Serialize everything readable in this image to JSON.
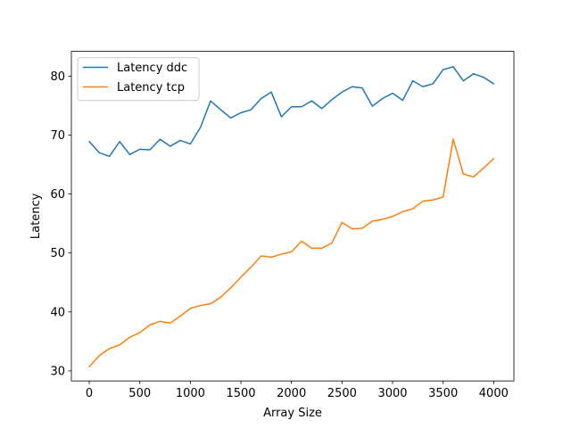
{
  "chart_data": {
    "type": "line",
    "title": "",
    "xlabel": "Array Size",
    "ylabel": "Latency",
    "xlim": [
      -177,
      4200
    ],
    "ylim": [
      28.3,
      84.2
    ],
    "xticks": [
      0,
      500,
      1000,
      1500,
      2000,
      2500,
      3000,
      3500,
      4000
    ],
    "yticks": [
      30,
      40,
      50,
      60,
      70,
      80
    ],
    "grid": false,
    "legend_position": "top-left",
    "x": [
      0,
      100,
      200,
      300,
      400,
      500,
      600,
      700,
      800,
      900,
      1000,
      1100,
      1200,
      1300,
      1400,
      1500,
      1600,
      1700,
      1800,
      1900,
      2000,
      2100,
      2200,
      2300,
      2400,
      2500,
      2600,
      2700,
      2800,
      2900,
      3000,
      3100,
      3200,
      3300,
      3400,
      3500,
      3600,
      3700,
      3800,
      3900,
      4000
    ],
    "series": [
      {
        "name": "Latency ddc",
        "color": "#1f77b4",
        "values": [
          68.9,
          67.0,
          66.4,
          68.9,
          66.7,
          67.6,
          67.5,
          69.3,
          68.1,
          69.1,
          68.5,
          71.3,
          75.8,
          74.3,
          72.9,
          73.8,
          74.3,
          76.2,
          77.3,
          73.1,
          74.8,
          74.8,
          75.8,
          74.5,
          76.0,
          77.3,
          78.2,
          78.0,
          74.9,
          76.2,
          77.1,
          75.9,
          79.2,
          78.2,
          78.7,
          81.1,
          81.6,
          79.2,
          80.4,
          79.8,
          78.7
        ]
      },
      {
        "name": "Latency tcp",
        "color": "#ff7f0e",
        "values": [
          30.7,
          32.6,
          33.8,
          34.4,
          35.7,
          36.5,
          37.8,
          38.4,
          38.1,
          39.3,
          40.6,
          41.1,
          41.4,
          42.5,
          44.1,
          45.9,
          47.6,
          49.5,
          49.3,
          49.8,
          50.2,
          52.0,
          50.8,
          50.8,
          51.7,
          55.2,
          54.1,
          54.2,
          55.4,
          55.7,
          56.2,
          57.0,
          57.5,
          58.8,
          59.0,
          59.5,
          69.3,
          63.4,
          62.9,
          64.4,
          66.0
        ]
      }
    ]
  }
}
